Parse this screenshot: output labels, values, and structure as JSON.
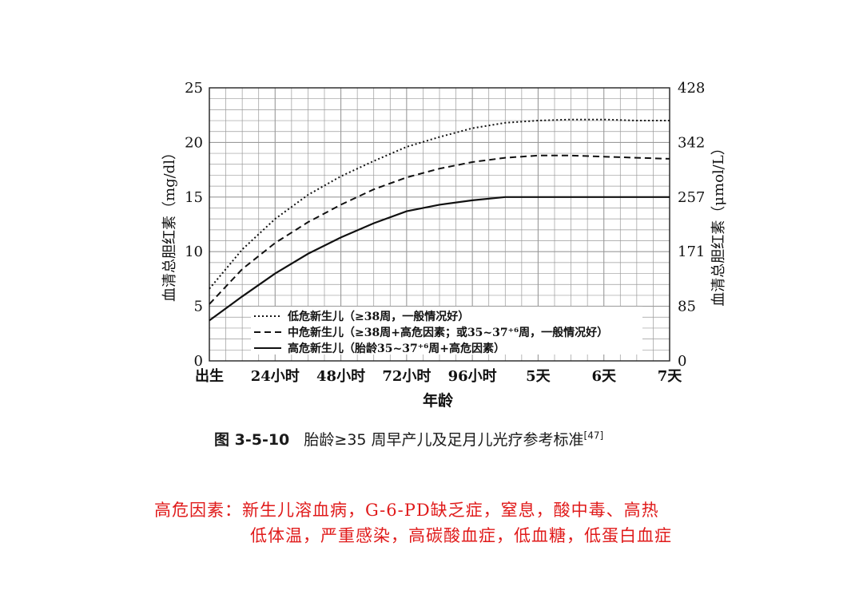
{
  "chart_data": {
    "type": "line",
    "x_tick_labels": [
      "出生",
      "24小时",
      "48小时",
      "72小时",
      "96小时",
      "5天",
      "6天",
      "7天"
    ],
    "xlabel": "年龄",
    "ylabel_left": "血清总胆红素（mg/dl）",
    "ylabel_right": "血清总胆红素（μmol/L）",
    "ylim": [
      0,
      25
    ],
    "y_ticks_left": [
      "0",
      "5",
      "10",
      "15",
      "20",
      "25"
    ],
    "y_ticks_right": [
      "0",
      "85",
      "171",
      "257",
      "342",
      "428"
    ],
    "grid": true,
    "legend_position": "bottom-left",
    "x": [
      0,
      12,
      24,
      36,
      48,
      60,
      72,
      84,
      96,
      108,
      120,
      132,
      144,
      156,
      168
    ],
    "series": [
      {
        "name": "低危新生儿（≥38周，一般情况好）",
        "style": "dotted",
        "values": [
          6.6,
          10.2,
          13.0,
          15.2,
          16.9,
          18.3,
          19.6,
          20.5,
          21.3,
          21.8,
          22.0,
          22.1,
          22.1,
          22.0,
          22.0
        ]
      },
      {
        "name": "中危新生儿（≥38周+高危因素；或35~37⁺⁶周，一般情况好）",
        "style": "dashed",
        "values": [
          5.2,
          8.4,
          10.8,
          12.7,
          14.3,
          15.7,
          16.8,
          17.6,
          18.2,
          18.6,
          18.8,
          18.8,
          18.7,
          18.6,
          18.5
        ]
      },
      {
        "name": "高危新生儿（胎龄35~37⁺⁶周+高危因素）",
        "style": "solid",
        "values": [
          3.7,
          5.9,
          8.0,
          9.8,
          11.3,
          12.6,
          13.7,
          14.3,
          14.7,
          15.0,
          15.0,
          15.0,
          15.0,
          15.0,
          15.0
        ]
      }
    ]
  },
  "caption": {
    "label": "图 3-5-10",
    "text": "胎龄≥35 周早产儿及足月儿光疗参考标准",
    "ref": "[47]"
  },
  "note": {
    "line1": "高危因素：新生儿溶血病，G-6-PD缺乏症，窒息，酸中毒、高热",
    "line2": "低体温，严重感染，高碳酸血症，低血糖，低蛋白血症"
  }
}
